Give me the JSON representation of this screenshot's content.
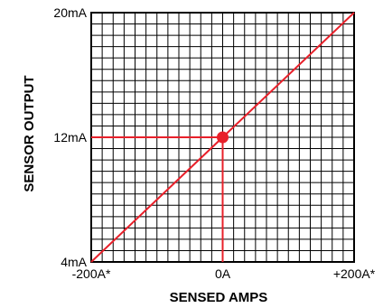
{
  "chart_data": {
    "type": "line",
    "title": "",
    "xlabel": "SENSED AMPS",
    "ylabel": "SENSOR OUTPUT",
    "x_ticks": [
      {
        "value": -200,
        "label": "-200A*"
      },
      {
        "value": 0,
        "label": "0A"
      },
      {
        "value": 200,
        "label": "+200A*"
      }
    ],
    "y_ticks": [
      {
        "value": 4,
        "label": "4mA"
      },
      {
        "value": 12,
        "label": "12mA"
      },
      {
        "value": 20,
        "label": "20mA"
      }
    ],
    "xlim": [
      -200,
      200
    ],
    "ylim": [
      4,
      20
    ],
    "grid": true,
    "grid_divisions_x": 24,
    "grid_divisions_y": 22,
    "series": [
      {
        "x": [
          -200,
          200
        ],
        "y": [
          4,
          20
        ]
      }
    ],
    "highlight_point": {
      "x": 0,
      "y": 12
    },
    "colors": {
      "line": "#e8202a",
      "grid": "#000000",
      "text": "#000000"
    }
  }
}
